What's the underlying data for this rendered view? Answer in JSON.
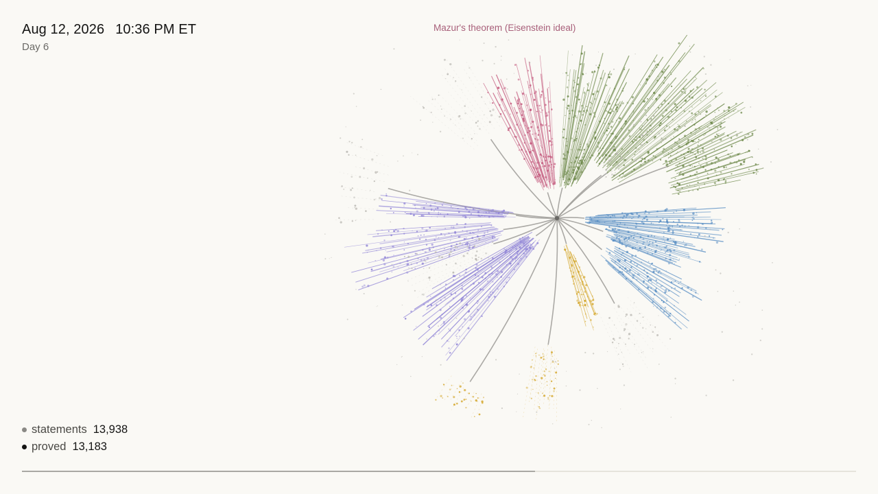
{
  "header": {
    "date": "Aug 12, 2026",
    "time": "10:36 PM ET",
    "day": "Day 6"
  },
  "highlight_label": "Mazur's theorem (Eisenstein ideal)",
  "stats": [
    {
      "name": "statements",
      "value": "13,938",
      "dot_color": "#8a8985"
    },
    {
      "name": "proved",
      "value": "13,183",
      "dot_color": "#141413"
    }
  ],
  "progress": {
    "fraction": 0.615
  },
  "colors": {
    "background": "#faf9f5",
    "trunk": "#9c9b97",
    "root": "#6b6a66",
    "pink": "#c45a7e",
    "green": "#6f8a4c",
    "blue": "#5a8fc4",
    "purple": "#8e82d6",
    "gold": "#d4a62a",
    "grey": "#b9b7b1"
  },
  "icons": {
    "root": "root-node-dot",
    "stat_marker": "legend-dot-icon"
  }
}
